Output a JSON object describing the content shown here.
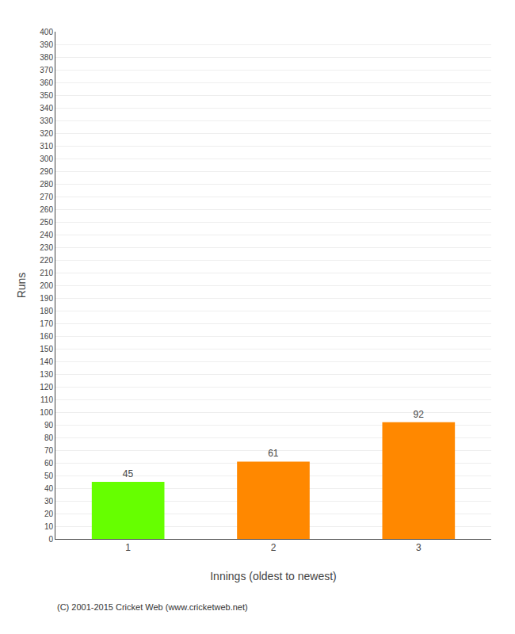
{
  "chart_data": {
    "type": "bar",
    "categories": [
      "1",
      "2",
      "3"
    ],
    "values": [
      45,
      61,
      92
    ],
    "colors": [
      "#66ff00",
      "#ff8800",
      "#ff8800"
    ],
    "xlabel": "Innings (oldest to newest)",
    "ylabel": "Runs",
    "ylim": [
      0,
      400
    ],
    "yticks": [
      0,
      10,
      20,
      30,
      40,
      50,
      60,
      70,
      80,
      90,
      100,
      110,
      120,
      130,
      140,
      150,
      160,
      170,
      180,
      190,
      200,
      210,
      220,
      230,
      240,
      250,
      260,
      270,
      280,
      290,
      300,
      310,
      320,
      330,
      340,
      350,
      360,
      370,
      380,
      390,
      400
    ],
    "grid": true,
    "data_labels": true,
    "annotations": [
      "(C) 2001-2015 Cricket Web (www.cricketweb.net)"
    ]
  }
}
